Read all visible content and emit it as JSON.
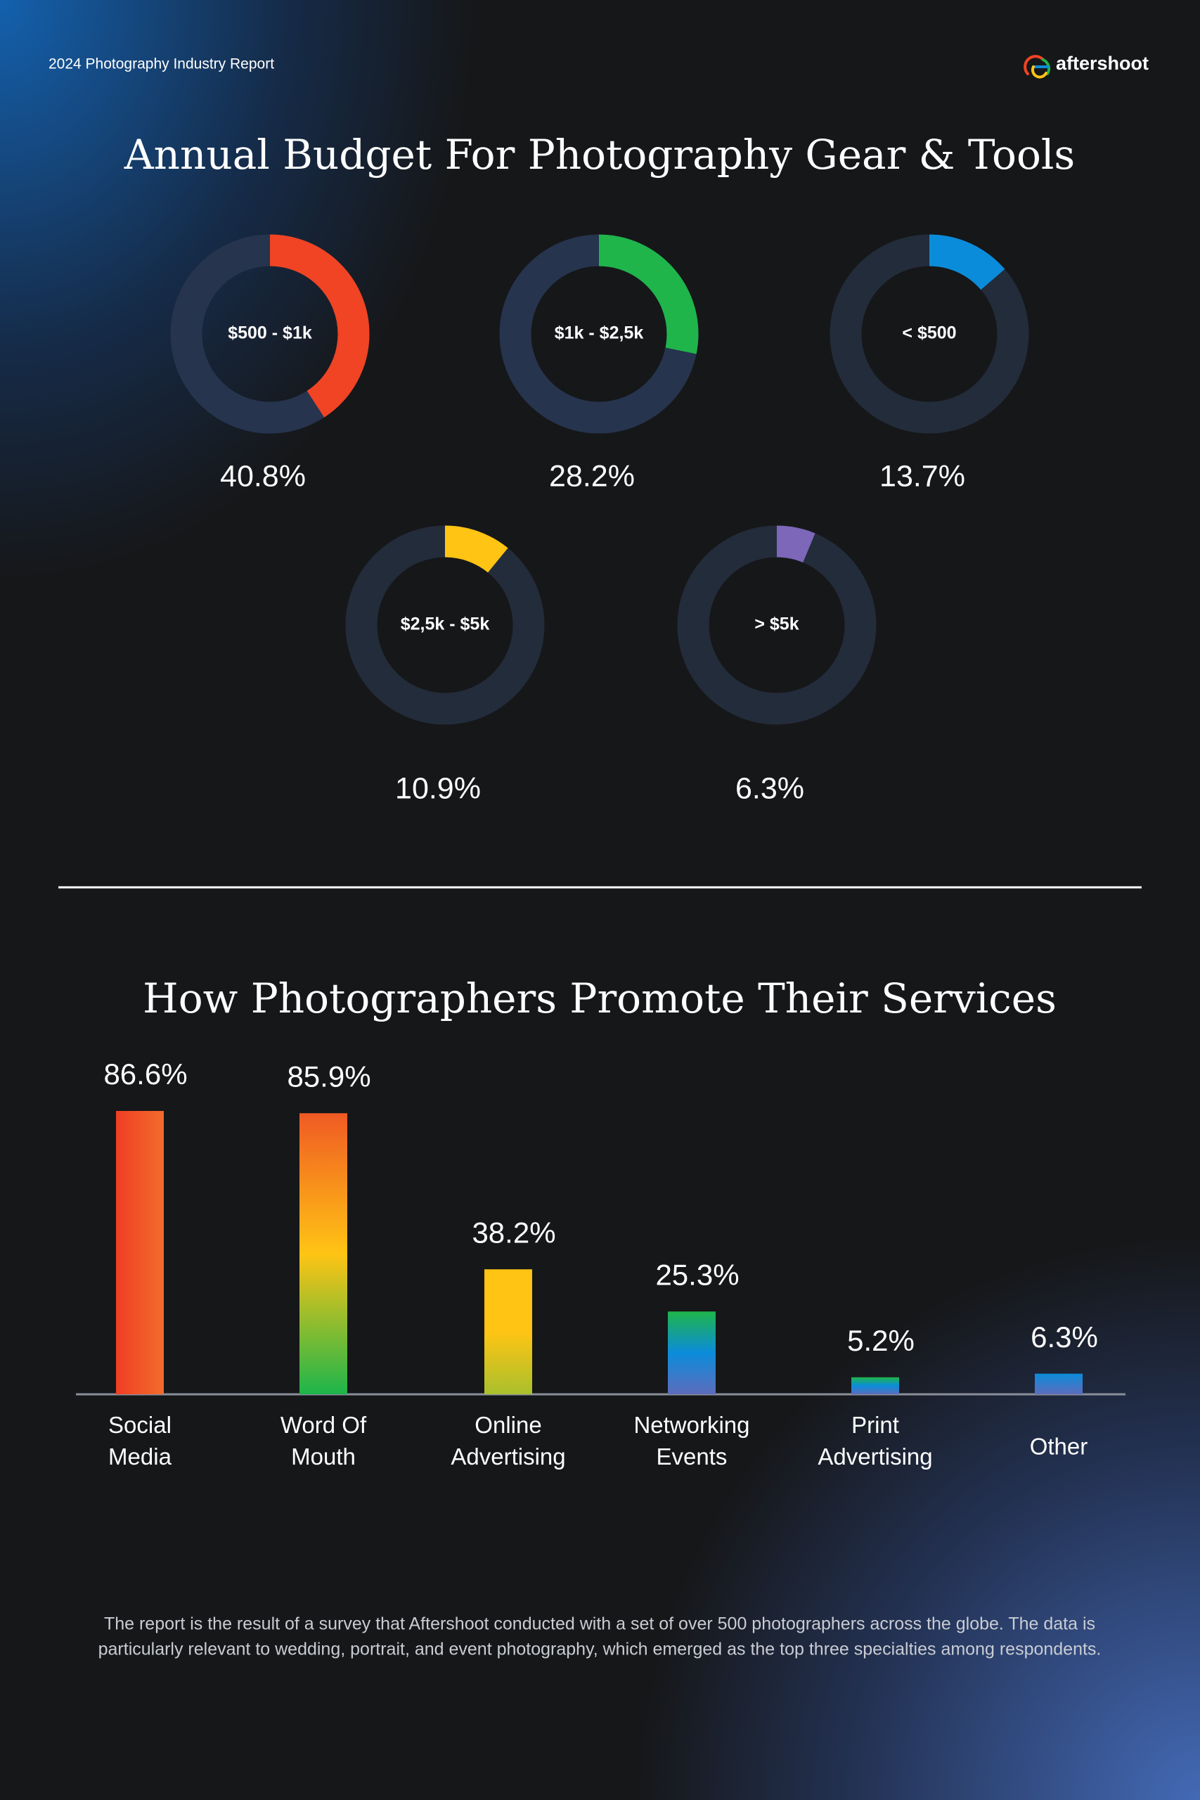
{
  "header": {
    "report": "2024 Photography Industry Report",
    "brand": "aftershoot"
  },
  "chart_data": [
    {
      "type": "donut",
      "title": "Annual Budget For Photography Gear & Tools",
      "categories": [
        "$500 - $1k",
        "$1k - $2,5k",
        "< $500",
        "$2,5k - $5k",
        "> $5k"
      ],
      "values": [
        40.8,
        28.2,
        13.7,
        10.9,
        6.3
      ],
      "value_labels": [
        "40.8%",
        "28.2%",
        "13.7%",
        "10.9%",
        "6.3%"
      ],
      "colors": [
        "#f04424",
        "#1fb54b",
        "#0b8cda",
        "#ffc414",
        "#7c67b9"
      ]
    },
    {
      "type": "bar",
      "title": "How Photographers Promote Their Services",
      "categories": [
        "Social Media",
        "Word Of Mouth",
        "Online Advertising",
        "Networking Events",
        "Print Advertising",
        "Other"
      ],
      "values": [
        86.6,
        85.9,
        38.2,
        25.3,
        5.2,
        6.3
      ],
      "value_labels": [
        "86.6%",
        "85.9%",
        "38.2%",
        "25.3%",
        "5.2%",
        "6.3%"
      ],
      "colors": [
        [
          "#f03e24",
          "#f26c2c"
        ],
        [
          "#f05a24",
          "#ffc414",
          "#1db54b"
        ],
        [
          "#ffc414",
          "#ffc414",
          "#a9c02c"
        ],
        [
          "#1fb54b",
          "#0b8cda",
          "#5d6cbc"
        ],
        [
          "#1fb54b",
          "#0b8cda",
          "#5d6cbc"
        ],
        [
          "#0b8cda",
          "#5d6cbc"
        ]
      ]
    }
  ],
  "footnote": [
    "The report is the result of a survey that Aftershoot conducted with a set of over 500 photographers across the globe. The data is",
    "particularly relevant to wedding, portrait, and event photography, which emerged as the top three specialties among respondents."
  ]
}
